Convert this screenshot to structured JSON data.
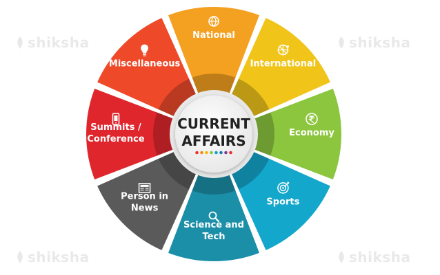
{
  "hub": {
    "line1": "CURRENT",
    "line2": "AFFAIRS",
    "dot_colors": [
      "#e7312b",
      "#f28a1e",
      "#f5b800",
      "#8cc63f",
      "#12a4c9",
      "#1b78b8",
      "#7a3f98",
      "#e7312b"
    ]
  },
  "segments": [
    {
      "id": "national",
      "lines": [
        "National"
      ],
      "color": "#f4a020",
      "icon": "globe-icon"
    },
    {
      "id": "international",
      "lines": [
        "International"
      ],
      "color": "#f0c419",
      "icon": "world-network-icon"
    },
    {
      "id": "economy",
      "lines": [
        "Economy"
      ],
      "color": "#8cc63f",
      "icon": "rupee-icon"
    },
    {
      "id": "sports",
      "lines": [
        "Sports"
      ],
      "color": "#13a7cc",
      "icon": "target-icon"
    },
    {
      "id": "science-and-tech",
      "lines": [
        "Science and",
        "Tech"
      ],
      "color": "#1c8fa8",
      "icon": "magnifier-icon"
    },
    {
      "id": "person-in-news",
      "lines": [
        "Person in",
        "News"
      ],
      "color": "#5a5a5a",
      "icon": "newspaper-icon"
    },
    {
      "id": "summits-conference",
      "lines": [
        "Summits /",
        "Conference"
      ],
      "color": "#e0262d",
      "icon": "mobile-icon"
    },
    {
      "id": "miscellaneous",
      "lines": [
        "Miscellaneous"
      ],
      "color": "#ee4a2a",
      "icon": "lightbulb-icon"
    }
  ],
  "watermarks": [
    "shiksha",
    "shiksha",
    "shiksha",
    "shiksha"
  ]
}
